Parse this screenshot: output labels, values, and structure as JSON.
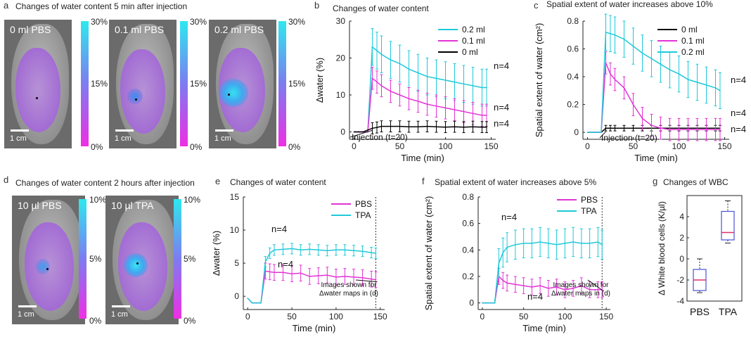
{
  "panels": {
    "a": {
      "letter": "a",
      "title": "Changes of water content 5 min after injection",
      "tiles": [
        "0 ml PBS",
        "0.1 ml PBS",
        "0.2 ml PBS"
      ],
      "scale": "1 cm",
      "cbar_top": "30%",
      "cbar_mid": "15%",
      "cbar_bot": "0%"
    },
    "b": {
      "letter": "b"
    },
    "c": {
      "letter": "c"
    },
    "d": {
      "letter": "d",
      "title": "Changes of water content 2 hours after injection",
      "tiles": [
        "10 µl PBS",
        "10 µl TPA"
      ],
      "scale": "1 cm",
      "cbar_top": "10%",
      "cbar_mid": "5%",
      "cbar_bot": "0%"
    },
    "e": {
      "letter": "e"
    },
    "f": {
      "letter": "f"
    },
    "g": {
      "letter": "g"
    }
  },
  "chart_data": [
    {
      "id": "b",
      "type": "line",
      "title": "Changes of water content",
      "xlabel": "Time (min)",
      "ylabel": "Δwater (%)",
      "xlim": [
        -5,
        155
      ],
      "ylim": [
        -2,
        30
      ],
      "xticks": [
        0,
        50,
        100,
        150
      ],
      "yticks": [
        0,
        10,
        20,
        30
      ],
      "legend": "top-right",
      "annotation": "Injection (t=20)",
      "n_labels": [
        "n=4",
        "n=4",
        "n=4"
      ],
      "series": [
        {
          "name": "0.2 ml",
          "color": "#1fc9d9",
          "x": [
            0,
            5,
            10,
            15,
            20,
            25,
            30,
            40,
            50,
            60,
            70,
            80,
            90,
            100,
            110,
            120,
            130,
            140,
            145
          ],
          "y": [
            0,
            0,
            0,
            0,
            23,
            22,
            21,
            19.5,
            18.5,
            17,
            16,
            15,
            14.5,
            14,
            13.5,
            13,
            12.5,
            12,
            12
          ],
          "err": 5
        },
        {
          "name": "0.1 ml",
          "color": "#e234d6",
          "x": [
            0,
            5,
            10,
            15,
            20,
            25,
            30,
            40,
            50,
            60,
            70,
            80,
            90,
            100,
            110,
            120,
            130,
            140,
            145
          ],
          "y": [
            0,
            0,
            0,
            0,
            14.5,
            13.5,
            12.5,
            11,
            10,
            9,
            8.3,
            7.5,
            7,
            6.5,
            6,
            5.5,
            5,
            4.5,
            4.5
          ],
          "err": 3
        },
        {
          "name": "0 ml",
          "color": "#000000",
          "x": [
            0,
            5,
            10,
            15,
            20,
            25,
            30,
            40,
            50,
            60,
            70,
            80,
            90,
            100,
            110,
            120,
            130,
            140,
            145
          ],
          "y": [
            0,
            0,
            0,
            0.5,
            1,
            1.2,
            1.5,
            1.5,
            1.5,
            1.4,
            1.4,
            1.5,
            1.4,
            1.3,
            1.4,
            1.3,
            1.4,
            1.3,
            1.3
          ],
          "err": 1.5
        }
      ]
    },
    {
      "id": "c",
      "type": "line",
      "title": "Spatial extent of water increases above 10%",
      "xlabel": "Time (min)",
      "ylabel": "Spatial extent of water (cm²)",
      "xlim": [
        -5,
        155
      ],
      "ylim": [
        -0.05,
        0.8
      ],
      "xticks": [
        0,
        50,
        100,
        150
      ],
      "yticks": [
        0,
        0.2,
        0.4,
        0.6,
        0.8
      ],
      "legend": "top-right",
      "annotation": "Injection (t=20)",
      "n_labels": [
        "n=4",
        "n=4",
        "n=4"
      ],
      "series": [
        {
          "name": "0 ml",
          "color": "#000000",
          "x": [
            0,
            5,
            10,
            15,
            20,
            25,
            30,
            40,
            50,
            60,
            70,
            80,
            90,
            100,
            110,
            120,
            130,
            140,
            145
          ],
          "y": [
            0,
            0,
            0,
            0,
            0.03,
            0.03,
            0.03,
            0.03,
            0.03,
            0.03,
            0.03,
            0.03,
            0.03,
            0.03,
            0.03,
            0.03,
            0.03,
            0.03,
            0.03
          ],
          "err": 0.02
        },
        {
          "name": "0.1 ml",
          "color": "#e234d6",
          "x": [
            0,
            5,
            10,
            15,
            20,
            25,
            30,
            40,
            50,
            60,
            70,
            80,
            90,
            100,
            110,
            120,
            130,
            140,
            145
          ],
          "y": [
            0,
            0,
            0,
            0,
            0.5,
            0.42,
            0.38,
            0.32,
            0.2,
            0.1,
            0.05,
            0.03,
            0.02,
            0.02,
            0.02,
            0.02,
            0.02,
            0.02,
            0.02
          ],
          "err": 0.08
        },
        {
          "name": "0.2 ml",
          "color": "#1fc9d9",
          "x": [
            0,
            5,
            10,
            15,
            20,
            25,
            30,
            40,
            50,
            60,
            70,
            80,
            90,
            100,
            110,
            120,
            130,
            140,
            145
          ],
          "y": [
            0,
            0,
            0,
            0,
            0.72,
            0.71,
            0.7,
            0.67,
            0.62,
            0.57,
            0.53,
            0.49,
            0.45,
            0.42,
            0.38,
            0.36,
            0.34,
            0.32,
            0.3
          ],
          "err": 0.13
        }
      ]
    },
    {
      "id": "e",
      "type": "line",
      "title": "Changes of water content",
      "xlabel": "Time (min)",
      "ylabel": "Δwater (%)",
      "xlim": [
        -5,
        155
      ],
      "ylim": [
        -2,
        15
      ],
      "xticks": [
        0,
        50,
        100,
        150
      ],
      "yticks": [
        0,
        5,
        10,
        15
      ],
      "legend": "top-right",
      "annotation": "Images shown for\nΔwater maps in (d)",
      "n_labels": [
        "n=4",
        "n=4"
      ],
      "series": [
        {
          "name": "PBS",
          "color": "#e234d6",
          "x": [
            0,
            5,
            10,
            15,
            20,
            25,
            30,
            40,
            50,
            60,
            70,
            80,
            90,
            100,
            110,
            120,
            130,
            140,
            145
          ],
          "y": [
            -0.3,
            -1,
            -1,
            -1,
            3.8,
            3.7,
            3.6,
            3.6,
            3.4,
            3.5,
            3,
            3.1,
            3.2,
            2.9,
            3,
            2.9,
            2.8,
            2.6,
            2.5
          ],
          "err": 1.2
        },
        {
          "name": "TPA",
          "color": "#1fc9d9",
          "x": [
            0,
            5,
            10,
            15,
            20,
            25,
            30,
            40,
            50,
            60,
            70,
            80,
            90,
            100,
            110,
            120,
            130,
            140,
            145
          ],
          "y": [
            -0.3,
            -1,
            -1,
            -1,
            5.2,
            6.5,
            7,
            7.1,
            7.2,
            7,
            7.1,
            7,
            6.9,
            7,
            7,
            6.9,
            6.8,
            6.6,
            6.5
          ],
          "err": 0.8
        }
      ]
    },
    {
      "id": "f",
      "type": "line",
      "title": "Spatial extent of water increases above 5%",
      "xlabel": "Time (min)",
      "ylabel": "Spatial extent of water (cm²)",
      "xlim": [
        -5,
        155
      ],
      "ylim": [
        -0.05,
        0.8
      ],
      "xticks": [
        0,
        50,
        100,
        150
      ],
      "yticks": [
        0,
        0.2,
        0.4,
        0.6,
        0.8
      ],
      "legend": "top-right",
      "annotation": "Images shown for\nΔwater maps in (d)",
      "n_labels": [
        "n=4",
        "n=4"
      ],
      "series": [
        {
          "name": "PBS",
          "color": "#e234d6",
          "x": [
            0,
            5,
            10,
            15,
            20,
            25,
            30,
            40,
            50,
            60,
            70,
            80,
            90,
            100,
            110,
            120,
            130,
            140,
            145
          ],
          "y": [
            0,
            0,
            0,
            0,
            0.2,
            0.17,
            0.15,
            0.14,
            0.13,
            0.12,
            0.13,
            0.11,
            0.12,
            0.1,
            0.11,
            0.13,
            0.1,
            0.1,
            0.1
          ],
          "err": 0.06
        },
        {
          "name": "TPA",
          "color": "#1fc9d9",
          "x": [
            0,
            5,
            10,
            15,
            20,
            25,
            30,
            40,
            50,
            60,
            70,
            80,
            90,
            100,
            110,
            120,
            130,
            140,
            145
          ],
          "y": [
            0,
            0,
            0,
            0,
            0.3,
            0.38,
            0.42,
            0.44,
            0.45,
            0.45,
            0.46,
            0.45,
            0.44,
            0.45,
            0.46,
            0.45,
            0.45,
            0.46,
            0.44
          ],
          "err": 0.11
        }
      ]
    },
    {
      "id": "g",
      "type": "box",
      "title": "Changes of WBC",
      "ylabel": "Δ White blood cells (K/µl)",
      "categories": [
        "PBS",
        "TPA"
      ],
      "ylim": [
        -4,
        6
      ],
      "yticks": [
        -4,
        -2,
        0,
        2,
        4
      ],
      "boxes": [
        {
          "min": -3.2,
          "q1": -3.0,
          "median": -2.0,
          "q3": -1.0,
          "max": 0
        },
        {
          "min": 1.5,
          "q1": 1.8,
          "median": 2.5,
          "q3": 4.5,
          "max": 5.5
        }
      ]
    }
  ]
}
